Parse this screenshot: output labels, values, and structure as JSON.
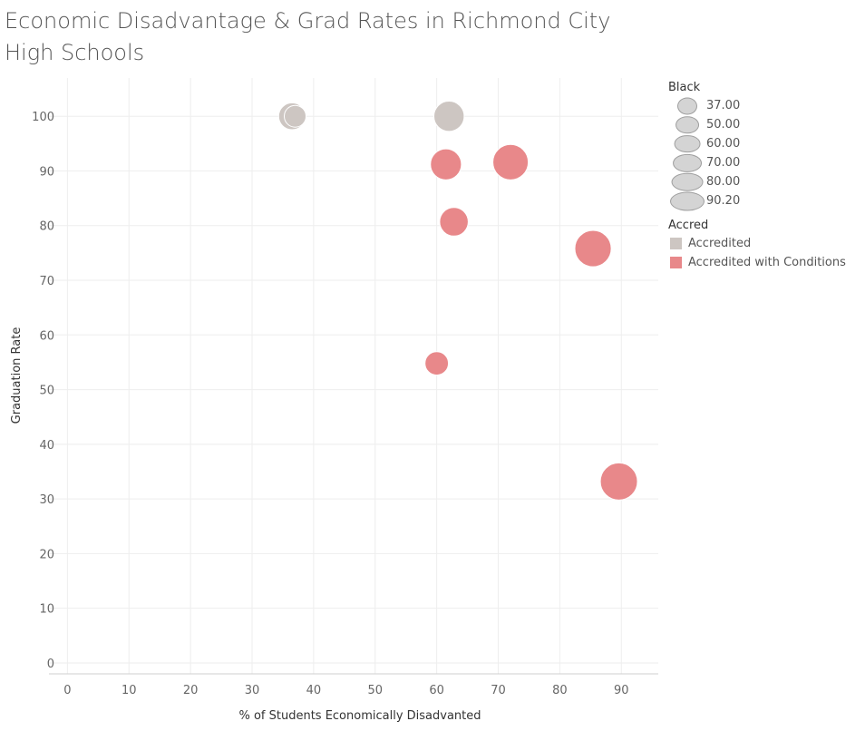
{
  "title": "Economic Disadvantage & Grad Rates in Richmond City High Schools",
  "legend": {
    "size_title": "Black",
    "size_items": [
      {
        "label": "37.00",
        "value": 37
      },
      {
        "label": "50.00",
        "value": 50
      },
      {
        "label": "60.00",
        "value": 60
      },
      {
        "label": "70.00",
        "value": 70
      },
      {
        "label": "80.00",
        "value": 80
      },
      {
        "label": "90.20",
        "value": 90.2
      }
    ],
    "color_title": "Accred",
    "color_items": [
      {
        "label": "Accredited",
        "color": "#cdc6c2"
      },
      {
        "label": "Accredited with Conditions",
        "color": "#e8888a"
      }
    ]
  },
  "chart_data": {
    "type": "scatter",
    "title": "Economic Disadvantage & Grad Rates in Richmond City High Schools",
    "xlabel": "% of Students Economically Disadvanted",
    "ylabel": "Graduation Rate",
    "xlim": [
      -3,
      96
    ],
    "ylim": [
      -2,
      107
    ],
    "xticks": [
      0,
      10,
      20,
      30,
      40,
      50,
      60,
      70,
      80,
      90
    ],
    "yticks": [
      0,
      10,
      20,
      30,
      40,
      50,
      60,
      70,
      80,
      90,
      100
    ],
    "grid": true,
    "size_field": "Black",
    "color_field": "Accred",
    "points": [
      {
        "x": 36.5,
        "y": 100,
        "size": 60,
        "accred": "Accredited"
      },
      {
        "x": 37,
        "y": 100,
        "size": 45,
        "accred": "Accredited"
      },
      {
        "x": 62,
        "y": 100,
        "size": 70,
        "accred": "Accredited"
      },
      {
        "x": 61.5,
        "y": 91.2,
        "size": 72,
        "accred": "Accredited with Conditions"
      },
      {
        "x": 72,
        "y": 91.6,
        "size": 85,
        "accred": "Accredited with Conditions"
      },
      {
        "x": 62.8,
        "y": 80.7,
        "size": 65,
        "accred": "Accredited with Conditions"
      },
      {
        "x": 85.4,
        "y": 75.8,
        "size": 88,
        "accred": "Accredited with Conditions"
      },
      {
        "x": 60,
        "y": 54.8,
        "size": 50,
        "accred": "Accredited with Conditions"
      },
      {
        "x": 89.6,
        "y": 33.2,
        "size": 90.2,
        "accred": "Accredited with Conditions"
      }
    ]
  }
}
